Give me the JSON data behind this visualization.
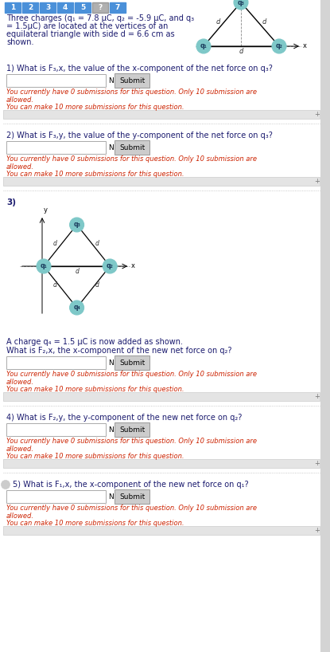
{
  "bg_color": "#f5f5f5",
  "content_bg": "#ffffff",
  "tab_numbers": [
    "1",
    "2",
    "3",
    "4",
    "5",
    "?",
    "7"
  ],
  "tab_colors": [
    "#4a90d9",
    "#4a90d9",
    "#4a90d9",
    "#4a90d9",
    "#4a90d9",
    "#b0b0b0",
    "#4a90d9"
  ],
  "tab_border_colors": [
    "#4a90d9",
    "#4a90d9",
    "#4a90d9",
    "#4a90d9",
    "#4a90d9",
    "#999999",
    "#4a90d9"
  ],
  "intro_text_line1": "Three charges (q",
  "intro_text_line2": " = 7.8 μC, q",
  "intro_sub1": "1",
  "intro_sub2": "2",
  "q_label_color": "#7ec8c8",
  "q_border_color": "#5aacac",
  "text_color": "#1a1a6e",
  "red_text_color": "#cc2200",
  "question1_pre": "1) What is F",
  "question1_sub": "3,x",
  "question1_post": ", the value of the x-component of the net force on q",
  "question1_qsub": "3",
  "question2_pre": "2) What is F",
  "question2_sub": "3,y",
  "question2_post": ", the value of the y-component of the net force on q",
  "question2_qsub": "3",
  "question3_a_pre": "A charge q",
  "question3_a_sub": "4",
  "question3_a_post": " = 1.5 μC is now added as shown.",
  "question3_b_pre": "What is F",
  "question3_b_sub": "2,x",
  "question3_b_post": ", the x-component of the new net force on q",
  "question3_b_qsub": "2",
  "question4_pre": "4) What is F",
  "question4_sub": "2,y",
  "question4_post": ", the y-component of the new net force on q",
  "question4_qsub": "2",
  "question5_pre": "5) What is F",
  "question5_sub": "1,x",
  "question5_post": ", the x-component of the new net force on q",
  "question5_qsub": "1",
  "sub_line1": "You currently have 0 submissions for this question. Only 10 submission are",
  "sub_line2": "allowed.",
  "sub_line3": "You can make 10 more submissions for this question."
}
